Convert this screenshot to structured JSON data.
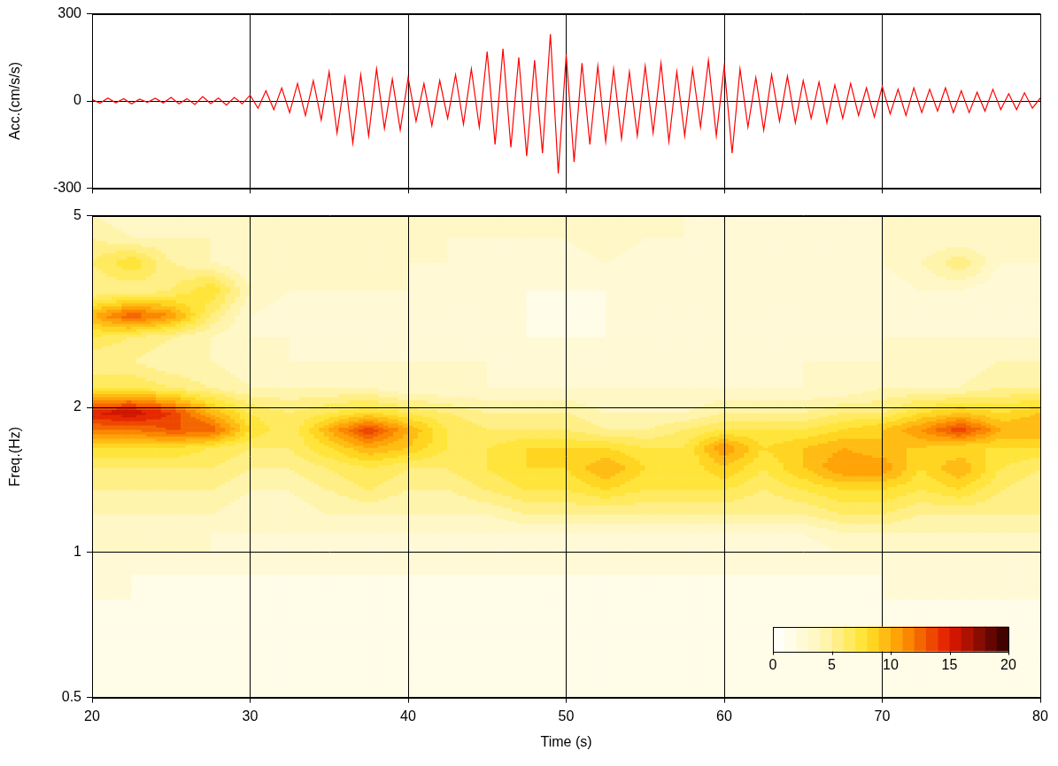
{
  "chart_data": [
    {
      "type": "line",
      "y_label": "Acc.(cm/s/s)",
      "color": "#ff0000",
      "x": [
        20,
        20.5,
        21,
        21.5,
        22,
        22.5,
        23,
        23.5,
        24,
        24.5,
        25,
        25.5,
        26,
        26.5,
        27,
        27.5,
        28,
        28.5,
        29,
        29.5,
        30,
        30.5,
        31,
        31.5,
        32,
        32.5,
        33,
        33.5,
        34,
        34.5,
        35,
        35.5,
        36,
        36.5,
        37,
        37.5,
        38,
        38.5,
        39,
        39.5,
        40,
        40.5,
        41,
        41.5,
        42,
        42.5,
        43,
        43.5,
        44,
        44.5,
        45,
        45.5,
        46,
        46.5,
        47,
        47.5,
        48,
        48.5,
        49,
        49.5,
        50,
        50.5,
        51,
        51.5,
        52,
        52.5,
        53,
        53.5,
        54,
        54.5,
        55,
        55.5,
        56,
        56.5,
        57,
        57.5,
        58,
        58.5,
        59,
        59.5,
        60,
        60.5,
        61,
        61.5,
        62,
        62.5,
        63,
        63.5,
        64,
        64.5,
        65,
        65.5,
        66,
        66.5,
        67,
        67.5,
        68,
        68.5,
        69,
        69.5,
        70,
        70.5,
        71,
        71.5,
        72,
        72.5,
        73,
        73.5,
        74,
        74.5,
        75,
        75.5,
        76,
        76.5,
        77,
        77.5,
        78,
        78.5,
        79,
        79.5,
        80
      ],
      "values": [
        5,
        -8,
        10,
        -6,
        8,
        -10,
        6,
        -5,
        9,
        -7,
        12,
        -10,
        8,
        -12,
        15,
        -9,
        10,
        -14,
        12,
        -10,
        20,
        -25,
        35,
        -30,
        45,
        -40,
        60,
        -50,
        70,
        -65,
        100,
        -110,
        80,
        -145,
        90,
        -120,
        110,
        -95,
        75,
        -100,
        80,
        -70,
        60,
        -85,
        70,
        -60,
        90,
        -80,
        110,
        -90,
        170,
        -150,
        180,
        -160,
        150,
        -190,
        140,
        -180,
        230,
        -250,
        160,
        -210,
        130,
        -150,
        120,
        -140,
        110,
        -130,
        100,
        -120,
        120,
        -110,
        130,
        -140,
        100,
        -120,
        110,
        -90,
        140,
        -120,
        120,
        -180,
        110,
        -90,
        80,
        -100,
        90,
        -70,
        85,
        -75,
        70,
        -60,
        65,
        -75,
        55,
        -60,
        60,
        -50,
        45,
        -55,
        50,
        -45,
        40,
        -50,
        45,
        -40,
        40,
        -35,
        45,
        -40,
        35,
        -40,
        30,
        -35,
        40,
        -30,
        25,
        -30,
        28,
        -25,
        10
      ],
      "xlim": [
        20,
        80
      ],
      "xticks": [
        20,
        30,
        40,
        50,
        60,
        70,
        80
      ],
      "ylim": [
        -300,
        300
      ],
      "yticks": [
        -300,
        0,
        300
      ],
      "grid": true,
      "tick_labels": "y"
    },
    {
      "type": "heatmap",
      "x_label": "Time (s)",
      "y_label": "Freq.(Hz)",
      "log": "y",
      "x": [
        20,
        22.5,
        25,
        27.5,
        30,
        32.5,
        35,
        37.5,
        40,
        42.5,
        45,
        47.5,
        50,
        52.5,
        55,
        57.5,
        60,
        62.5,
        65,
        67.5,
        70,
        72.5,
        75,
        77.5,
        80
      ],
      "y": [
        0.5,
        0.6,
        0.7,
        0.8,
        0.9,
        1.0,
        1.1,
        1.2,
        1.35,
        1.5,
        1.65,
        1.8,
        1.95,
        2.2,
        2.5,
        2.8,
        3.1,
        3.5,
        4.0,
        4.5,
        5.0
      ],
      "cells": [
        [
          1,
          1,
          1,
          1,
          1,
          1,
          1,
          1,
          1,
          1,
          1,
          1,
          1,
          1,
          1,
          1,
          1,
          1,
          1,
          1,
          1,
          1,
          1,
          1,
          1
        ],
        [
          1,
          1,
          1,
          1,
          1,
          1,
          1,
          1,
          1,
          1,
          1,
          1,
          1,
          1,
          1,
          1,
          1,
          1,
          1,
          1,
          1,
          1,
          1,
          1,
          1
        ],
        [
          1,
          1,
          1,
          1,
          1,
          1,
          1,
          1,
          1,
          1,
          1,
          1,
          1,
          1,
          1,
          1,
          1,
          1,
          1,
          1,
          1,
          1,
          1,
          1,
          1
        ],
        [
          2,
          2,
          1,
          1,
          1,
          1,
          1,
          1,
          1,
          1,
          1,
          1,
          1,
          1,
          1,
          1,
          1,
          1,
          1,
          1,
          2,
          2,
          2,
          2,
          2
        ],
        [
          2,
          2,
          2,
          2,
          2,
          2,
          2,
          2,
          2,
          2,
          2,
          2,
          2,
          2,
          2,
          2,
          2,
          2,
          2,
          2,
          2,
          2,
          2,
          2,
          2
        ],
        [
          3,
          3,
          3,
          3,
          2,
          2,
          2,
          2,
          2,
          2,
          2,
          2,
          2,
          2,
          2,
          2,
          2,
          2,
          2,
          3,
          3,
          3,
          3,
          3,
          3
        ],
        [
          3,
          4,
          3,
          3,
          3,
          3,
          3,
          3,
          3,
          3,
          3,
          3,
          3,
          3,
          3,
          3,
          3,
          3,
          3,
          4,
          4,
          4,
          4,
          4,
          4
        ],
        [
          4,
          4,
          4,
          4,
          3,
          3,
          4,
          4,
          4,
          4,
          4,
          5,
          5,
          5,
          5,
          5,
          5,
          5,
          5,
          6,
          6,
          5,
          5,
          5,
          5
        ],
        [
          5,
          5,
          5,
          5,
          4,
          4,
          5,
          6,
          5,
          5,
          6,
          7,
          7,
          8,
          7,
          7,
          7,
          6,
          7,
          8,
          8,
          7,
          8,
          6,
          5
        ],
        [
          6,
          6,
          6,
          6,
          5,
          5,
          6,
          7,
          6,
          6,
          7,
          8,
          8,
          10,
          8,
          7,
          9,
          7,
          9,
          11,
          11,
          8,
          10,
          7,
          6
        ],
        [
          8,
          8,
          8,
          7,
          6,
          6,
          8,
          10,
          9,
          7,
          7,
          8,
          8,
          8,
          7,
          7,
          11,
          8,
          9,
          10,
          9,
          9,
          8,
          8,
          8
        ],
        [
          12,
          12,
          13,
          13,
          8,
          6,
          10,
          14,
          10,
          7,
          6,
          6,
          6,
          5,
          5,
          6,
          7,
          7,
          7,
          8,
          9,
          11,
          14,
          10,
          10
        ],
        [
          15,
          16,
          14,
          10,
          7,
          6,
          7,
          8,
          7,
          6,
          5,
          5,
          5,
          4,
          4,
          4,
          5,
          5,
          5,
          6,
          6,
          8,
          9,
          8,
          9
        ],
        [
          7,
          7,
          6,
          5,
          4,
          4,
          4,
          4,
          3,
          3,
          3,
          3,
          3,
          3,
          3,
          3,
          3,
          3,
          3,
          3,
          4,
          4,
          4,
          5,
          5
        ],
        [
          5,
          5,
          4,
          4,
          3,
          3,
          3,
          3,
          3,
          3,
          3,
          2,
          2,
          2,
          2,
          2,
          2,
          2,
          3,
          3,
          3,
          3,
          3,
          4,
          4
        ],
        [
          7,
          6,
          5,
          4,
          3,
          3,
          2,
          2,
          2,
          2,
          2,
          2,
          2,
          2,
          2,
          2,
          2,
          2,
          2,
          2,
          3,
          3,
          3,
          3,
          3
        ],
        [
          10,
          13,
          11,
          6,
          3,
          2,
          2,
          2,
          2,
          2,
          2,
          2,
          1,
          2,
          2,
          2,
          2,
          2,
          2,
          2,
          2,
          2,
          3,
          2,
          2
        ],
        [
          5,
          5,
          6,
          8,
          4,
          3,
          3,
          3,
          3,
          2,
          2,
          2,
          2,
          2,
          2,
          2,
          2,
          2,
          2,
          2,
          2,
          3,
          3,
          2,
          2
        ],
        [
          6,
          8,
          5,
          4,
          3,
          3,
          3,
          4,
          3,
          3,
          2,
          2,
          2,
          3,
          2,
          2,
          2,
          2,
          2,
          2,
          3,
          4,
          6,
          3,
          3
        ],
        [
          5,
          4,
          4,
          4,
          3,
          3,
          3,
          3,
          3,
          3,
          3,
          3,
          3,
          4,
          3,
          3,
          2,
          3,
          2,
          2,
          3,
          3,
          3,
          3,
          3
        ],
        [
          4,
          3,
          3,
          3,
          3,
          3,
          3,
          3,
          3,
          3,
          3,
          4,
          3,
          3,
          3,
          3,
          3,
          3,
          3,
          3,
          3,
          3,
          3,
          3,
          3
        ]
      ],
      "colorbar_range": [
        0,
        20
      ],
      "colorbar_ticks": [
        0,
        5,
        10,
        15,
        20
      ],
      "xlim": [
        20,
        80
      ],
      "xticks": [
        20,
        30,
        40,
        50,
        60,
        70,
        80
      ],
      "ylim": [
        0.5,
        5
      ],
      "yticks": [
        0.5,
        1,
        2,
        5
      ],
      "grid": true
    }
  ]
}
